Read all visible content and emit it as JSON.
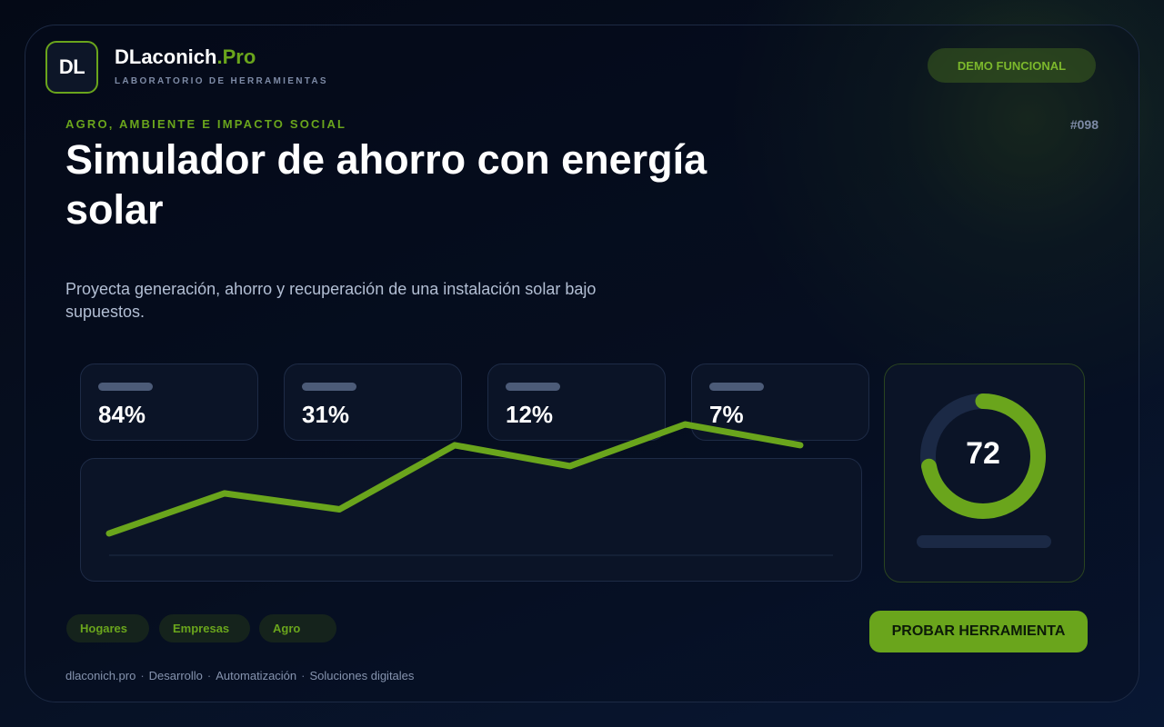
{
  "brand": {
    "logo_text": "DL",
    "name": "DLaconich",
    "name_accent": ".Pro",
    "subtitle": "LABORATORIO DE HERRAMIENTAS"
  },
  "header": {
    "badge": "DEMO FUNCIONAL"
  },
  "tool": {
    "category": "AGRO, AMBIENTE E IMPACTO SOCIAL",
    "id": "#098",
    "title": "Simulador de ahorro con energía solar",
    "description": "Proyecta generación, ahorro y recuperación de una instalación solar bajo supuestos."
  },
  "stats": [
    {
      "value": "84%"
    },
    {
      "value": "31%"
    },
    {
      "value": "12%"
    },
    {
      "value": "7%"
    }
  ],
  "score": {
    "value": "72",
    "percent": 72
  },
  "chart_data": {
    "type": "line",
    "values": [
      20,
      45,
      35,
      75,
      62,
      88,
      75
    ],
    "ylim": [
      0,
      100
    ],
    "color": "#6aa51c"
  },
  "tags": [
    "Hogares",
    "Empresas",
    "Agro"
  ],
  "cta": {
    "label": "PROBAR HERRAMIENTA"
  },
  "footer": [
    "dlaconich.pro",
    "Desarrollo",
    "Automatización",
    "Soluciones digitales"
  ],
  "colors": {
    "accent": "#6aa51c",
    "background": "#050b18",
    "card": "#0b1427",
    "muted": "#7d8aa5"
  }
}
